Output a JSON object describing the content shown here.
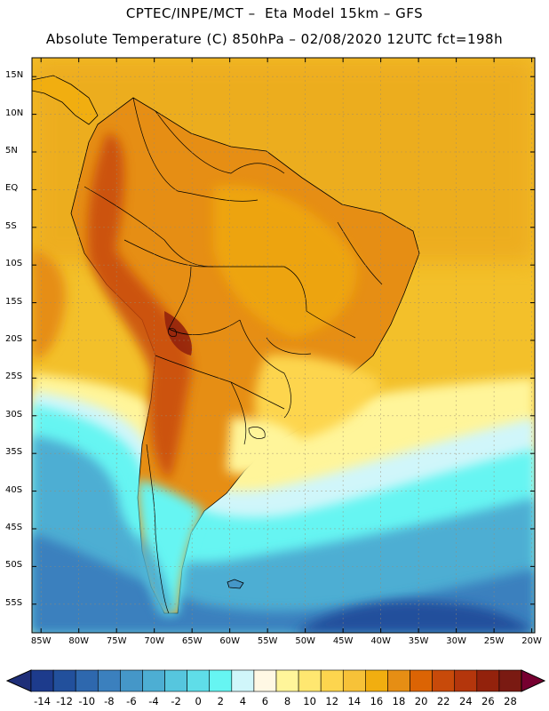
{
  "header": {
    "line1": "CPTEC/INPE/MCT –  Eta Model 15km – GFS",
    "line2": "Absolute Temperature (C) 850hPa – 02/08/2020 12UTC fct=198h"
  },
  "map": {
    "lat_labels": [
      "15N",
      "10N",
      "5N",
      "EQ",
      "5S",
      "10S",
      "15S",
      "20S",
      "25S",
      "30S",
      "35S",
      "40S",
      "45S",
      "50S",
      "55S"
    ],
    "lon_labels": [
      "85W",
      "80W",
      "75W",
      "70W",
      "65W",
      "60W",
      "55W",
      "50W",
      "45W",
      "40W",
      "35W",
      "30W",
      "25W",
      "20W"
    ],
    "lat_values": [
      15,
      10,
      5,
      0,
      -5,
      -10,
      -15,
      -20,
      -25,
      -30,
      -35,
      -40,
      -45,
      -50,
      -55
    ],
    "lon_values": [
      -85,
      -80,
      -75,
      -70,
      -65,
      -60,
      -55,
      -50,
      -45,
      -40,
      -35,
      -30,
      -25,
      -20
    ]
  },
  "colorbar": {
    "labels": [
      "-14",
      "-12",
      "-10",
      "-8",
      "-6",
      "-4",
      "-2",
      "0",
      "2",
      "4",
      "6",
      "8",
      "10",
      "12",
      "14",
      "16",
      "18",
      "20",
      "22",
      "24",
      "26",
      "28"
    ],
    "colors": [
      "#1d3b8c",
      "#22509c",
      "#2e68ae",
      "#3b80be",
      "#4597c8",
      "#4daed3",
      "#56c6de",
      "#5fdde8",
      "#66f5f2",
      "#d0f6fa",
      "#fff8e4",
      "#fff59a",
      "#ffe770",
      "#fdd54e",
      "#f7c238",
      "#f1ae10",
      "#e68e14",
      "#dc6404",
      "#c84a0a",
      "#b4360c",
      "#93220c",
      "#7a1a12"
    ],
    "under_color": "#1e2e78",
    "over_color": "#760030"
  },
  "legend_colors": {
    "ocean_north": "#f3c02a",
    "land_warm": "#e68e14",
    "highlands": "#c84a0a",
    "subtropical": "#fff59a",
    "cold_south": "#66f5f2",
    "polar": "#2e68ae"
  }
}
